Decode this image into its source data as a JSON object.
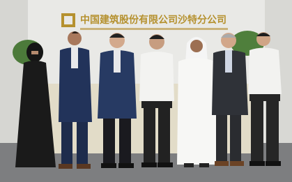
{
  "sign": {
    "company_name": "中国建筑股份有限公司沙特分公司"
  }
}
